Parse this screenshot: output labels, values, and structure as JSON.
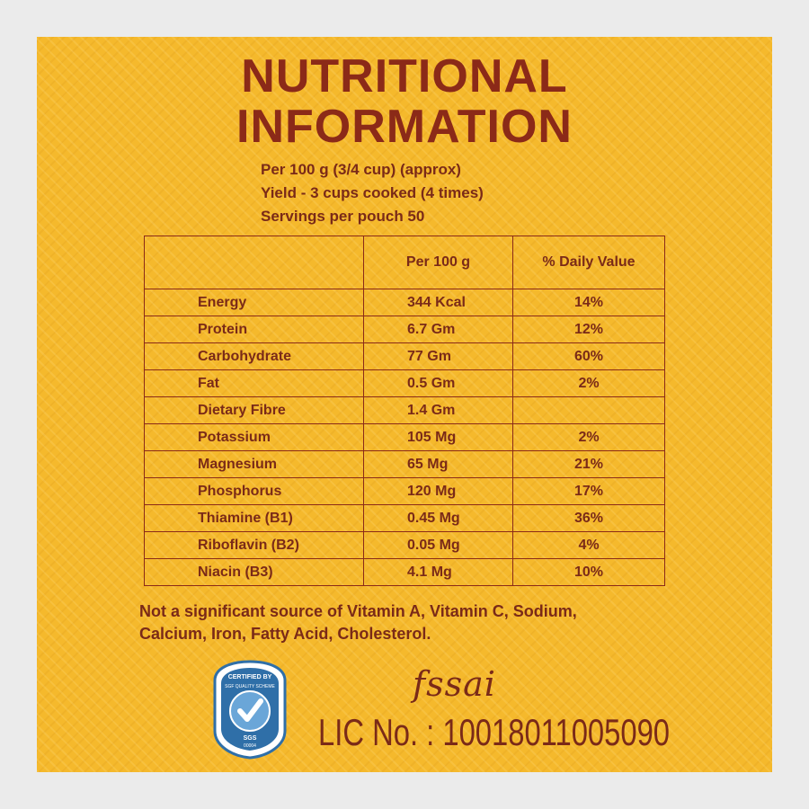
{
  "title": {
    "line1": "NUTRITIONAL",
    "line2": "INFORMATION"
  },
  "info": {
    "per": "Per 100 g (3/4 cup) (approx)",
    "yield": "Yield - 3 cups cooked (4 times)",
    "servings": "Servings per pouch 50"
  },
  "table": {
    "headers": [
      "",
      "Per 100 g",
      "% Daily Value"
    ],
    "rows": [
      {
        "name": "Energy",
        "value": "344 Kcal",
        "dv": "14%"
      },
      {
        "name": "Protein",
        "value": "6.7 Gm",
        "dv": "12%"
      },
      {
        "name": "Carbohydrate",
        "value": "77 Gm",
        "dv": "60%"
      },
      {
        "name": "Fat",
        "value": "0.5 Gm",
        "dv": "2%"
      },
      {
        "name": "Dietary Fibre",
        "value": "1.4 Gm",
        "dv": ""
      },
      {
        "name": "Potassium",
        "value": "105 Mg",
        "dv": "2%"
      },
      {
        "name": "Magnesium",
        "value": "65 Mg",
        "dv": "21%"
      },
      {
        "name": "Phosphorus",
        "value": "120 Mg",
        "dv": "17%"
      },
      {
        "name": "Thiamine (B1)",
        "value": "0.45 Mg",
        "dv": "36%"
      },
      {
        "name": "Riboflavin (B2)",
        "value": "0.05 Mg",
        "dv": "4%"
      },
      {
        "name": "Niacin (B3)",
        "value": "4.1 Mg",
        "dv": "10%"
      }
    ]
  },
  "note": {
    "line1": "Not a significant source of Vitamin A, Vitamin C, Sodium,",
    "line2": "Calcium, Iron, Fatty Acid, Cholesterol."
  },
  "badge": {
    "top_text": "CERTIFIED BY",
    "arc_text": "SGF QUALITY SCHEME",
    "bottom_text": "SGS",
    "code": "00004"
  },
  "fssai": {
    "logo_text": "fssai",
    "license": "LIC No. : 10018011005090"
  },
  "colors": {
    "background": "#f5b92c",
    "text": "#7a2a18",
    "title": "#8b2a18",
    "badge": "#2f6fa8"
  }
}
